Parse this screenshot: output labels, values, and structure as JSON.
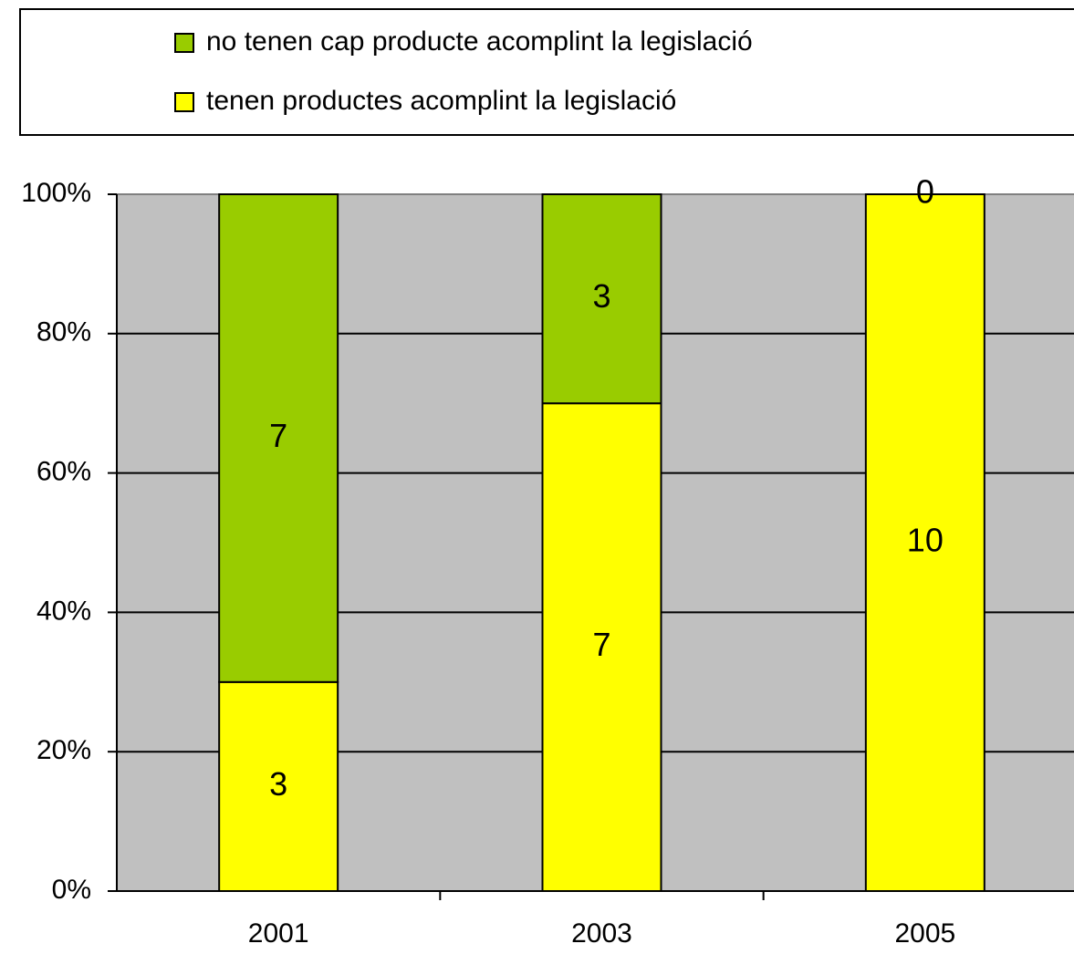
{
  "chart_data": {
    "type": "bar",
    "stacking": "percent",
    "categories": [
      "2001",
      "2003",
      "2005"
    ],
    "series": [
      {
        "name": "tenen productes acomplint la legislació",
        "color": "#ffff00",
        "values": [
          3,
          7,
          10
        ]
      },
      {
        "name": "no tenen cap producte acomplint la legislació",
        "color": "#99cc00",
        "values": [
          7,
          3,
          0
        ]
      }
    ],
    "ylim": [
      0,
      100
    ],
    "yticks": [
      {
        "value": 0,
        "label": "0%"
      },
      {
        "value": 20,
        "label": "20%"
      },
      {
        "value": 40,
        "label": "40%"
      },
      {
        "value": 60,
        "label": "60%"
      },
      {
        "value": 80,
        "label": "80%"
      },
      {
        "value": 100,
        "label": "100%"
      }
    ],
    "grid": true,
    "legend": "top"
  }
}
